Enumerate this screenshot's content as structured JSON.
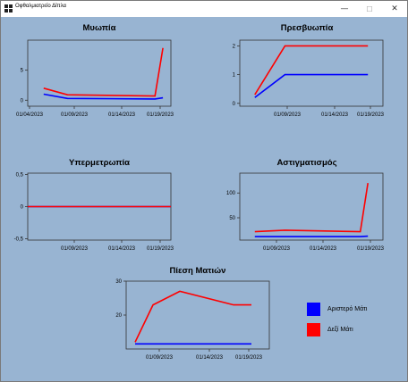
{
  "window": {
    "title": "Οφθαλμιατρείο Δίπλα",
    "minimize_glyph": "—",
    "maximize_glyph": "☐",
    "close_glyph": "✕"
  },
  "colors": {
    "left_eye": "#0000ff",
    "right_eye": "#ff0000",
    "background": "#98b4d2"
  },
  "legend": [
    {
      "label": "Αριστερό Μάτι",
      "color": "#0000ff"
    },
    {
      "label": "Δεξί Μάτι",
      "color": "#ff0000"
    }
  ],
  "chart_data": [
    {
      "type": "line",
      "title": "Μυωπία",
      "x_ticks": [
        "01/04/2023",
        "01/09/2023",
        "01/14/2023",
        "01/19/2023"
      ],
      "y_ticks": [
        "0",
        "5"
      ],
      "ylim": [
        -1,
        10
      ],
      "x_range": [
        "2023-01-02",
        "2023-01-20"
      ],
      "series": [
        {
          "eye": "left",
          "x": [
            "2023-01-04",
            "2023-01-07",
            "2023-01-18",
            "2023-01-19"
          ],
          "values": [
            1,
            0.3,
            0.2,
            0.4
          ]
        },
        {
          "eye": "right",
          "x": [
            "2023-01-04",
            "2023-01-07",
            "2023-01-18",
            "2023-01-19"
          ],
          "values": [
            2,
            0.9,
            0.7,
            8.7
          ]
        }
      ]
    },
    {
      "type": "line",
      "title": "Πρεσβυωπία",
      "x_ticks": [
        "01/09/2023",
        "01/14/2023",
        "01/19/2023"
      ],
      "y_ticks": [
        "0",
        "1",
        "2"
      ],
      "ylim": [
        -0.1,
        2.2
      ],
      "x_range": [
        "2023-01-02",
        "2023-01-21"
      ],
      "series": [
        {
          "eye": "left",
          "x": [
            "2023-01-04",
            "2023-01-08",
            "2023-01-19"
          ],
          "values": [
            0.2,
            1,
            1
          ]
        },
        {
          "eye": "right",
          "x": [
            "2023-01-04",
            "2023-01-08",
            "2023-01-19"
          ],
          "values": [
            0.3,
            2,
            2
          ]
        }
      ]
    },
    {
      "type": "line",
      "title": "Υπερμετρωπία",
      "x_ticks": [
        "01/09/2023",
        "01/14/2023",
        "01/19/2023"
      ],
      "y_ticks": [
        "0,5",
        "0",
        "-0,5"
      ],
      "ylim": [
        -0.52,
        0.52
      ],
      "x_range": [
        "2023-01-02",
        "2023-01-21"
      ],
      "series": [
        {
          "eye": "left",
          "x": [
            "2023-01-02",
            "2023-01-21"
          ],
          "values": [
            0,
            0
          ]
        },
        {
          "eye": "right",
          "x": [
            "2023-01-02",
            "2023-01-21"
          ],
          "values": [
            0,
            0
          ]
        }
      ]
    },
    {
      "type": "line",
      "title": "Αστιγματισμός",
      "x_ticks": [
        "01/09/2023",
        "01/14/2023",
        "01/19/2023"
      ],
      "y_ticks": [
        "100",
        "50"
      ],
      "ylim": [
        5,
        140
      ],
      "x_range": [
        "2023-01-02",
        "2023-01-21"
      ],
      "series": [
        {
          "eye": "left",
          "x": [
            "2023-01-04",
            "2023-01-08",
            "2023-01-18",
            "2023-01-19"
          ],
          "values": [
            12,
            12,
            12,
            13
          ]
        },
        {
          "eye": "right",
          "x": [
            "2023-01-04",
            "2023-01-08",
            "2023-01-18",
            "2023-01-19"
          ],
          "values": [
            22,
            25,
            22,
            120
          ]
        }
      ]
    },
    {
      "type": "line",
      "title": "Πίεση Ματιών",
      "x_ticks": [
        "01/09/2023",
        "01/14/2023",
        "01/19/2023"
      ],
      "y_ticks": [
        "30",
        "20"
      ],
      "ylim": [
        10,
        30
      ],
      "x_range": [
        "2023-01-05",
        "2023-01-21"
      ],
      "series": [
        {
          "eye": "left",
          "x": [
            "2023-01-06",
            "2023-01-19"
          ],
          "values": [
            11.5,
            11.5
          ]
        },
        {
          "eye": "right",
          "x": [
            "2023-01-06",
            "2023-01-08",
            "2023-01-11",
            "2023-01-17",
            "2023-01-19"
          ],
          "values": [
            12,
            23,
            27,
            23,
            23
          ]
        }
      ]
    }
  ]
}
